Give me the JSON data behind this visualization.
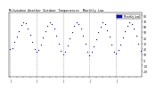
{
  "title": "Milwaukee Weather Outdoor Temperature  Monthly Low",
  "dot_color": "#0000dd",
  "background_color": "#ffffff",
  "plot_bg": "#ffffff",
  "grid_color": "#888888",
  "ylim": [
    -30,
    85
  ],
  "yticks": [
    -20,
    -10,
    0,
    10,
    20,
    30,
    40,
    50,
    60,
    70,
    80
  ],
  "ytick_labels": [
    "-20",
    "-10",
    "0",
    "10",
    "20",
    "30",
    "40",
    "50",
    "60",
    "70",
    "80"
  ],
  "legend_label": "Monthly Low",
  "legend_color": "#0000ff",
  "monthly_lows": [
    20,
    22,
    32,
    42,
    52,
    63,
    68,
    66,
    57,
    46,
    33,
    20,
    14,
    18,
    28,
    40,
    51,
    61,
    67,
    65,
    56,
    44,
    30,
    17,
    10,
    15,
    26,
    39,
    50,
    61,
    67,
    65,
    56,
    43,
    29,
    15,
    8,
    14,
    25,
    38,
    50,
    60,
    67,
    64,
    54,
    42,
    27,
    14,
    12,
    18,
    27,
    40,
    51,
    61,
    67,
    65,
    56,
    44,
    30,
    17
  ],
  "num_total": 60,
  "year_boundary_positions": [
    0,
    12,
    24,
    36,
    48,
    60
  ],
  "xtick_positions": [
    0,
    3,
    6,
    9,
    12,
    15,
    18,
    21,
    24,
    27,
    30,
    33,
    36,
    39,
    42,
    45,
    48,
    51,
    54,
    57
  ],
  "xtick_labels": [
    "J",
    "",
    "",
    "",
    "J",
    "",
    "",
    "",
    "J",
    "",
    "",
    "",
    "J",
    "",
    "",
    "",
    "J",
    "",
    "",
    ""
  ],
  "xlabel": "",
  "ylabel": ""
}
